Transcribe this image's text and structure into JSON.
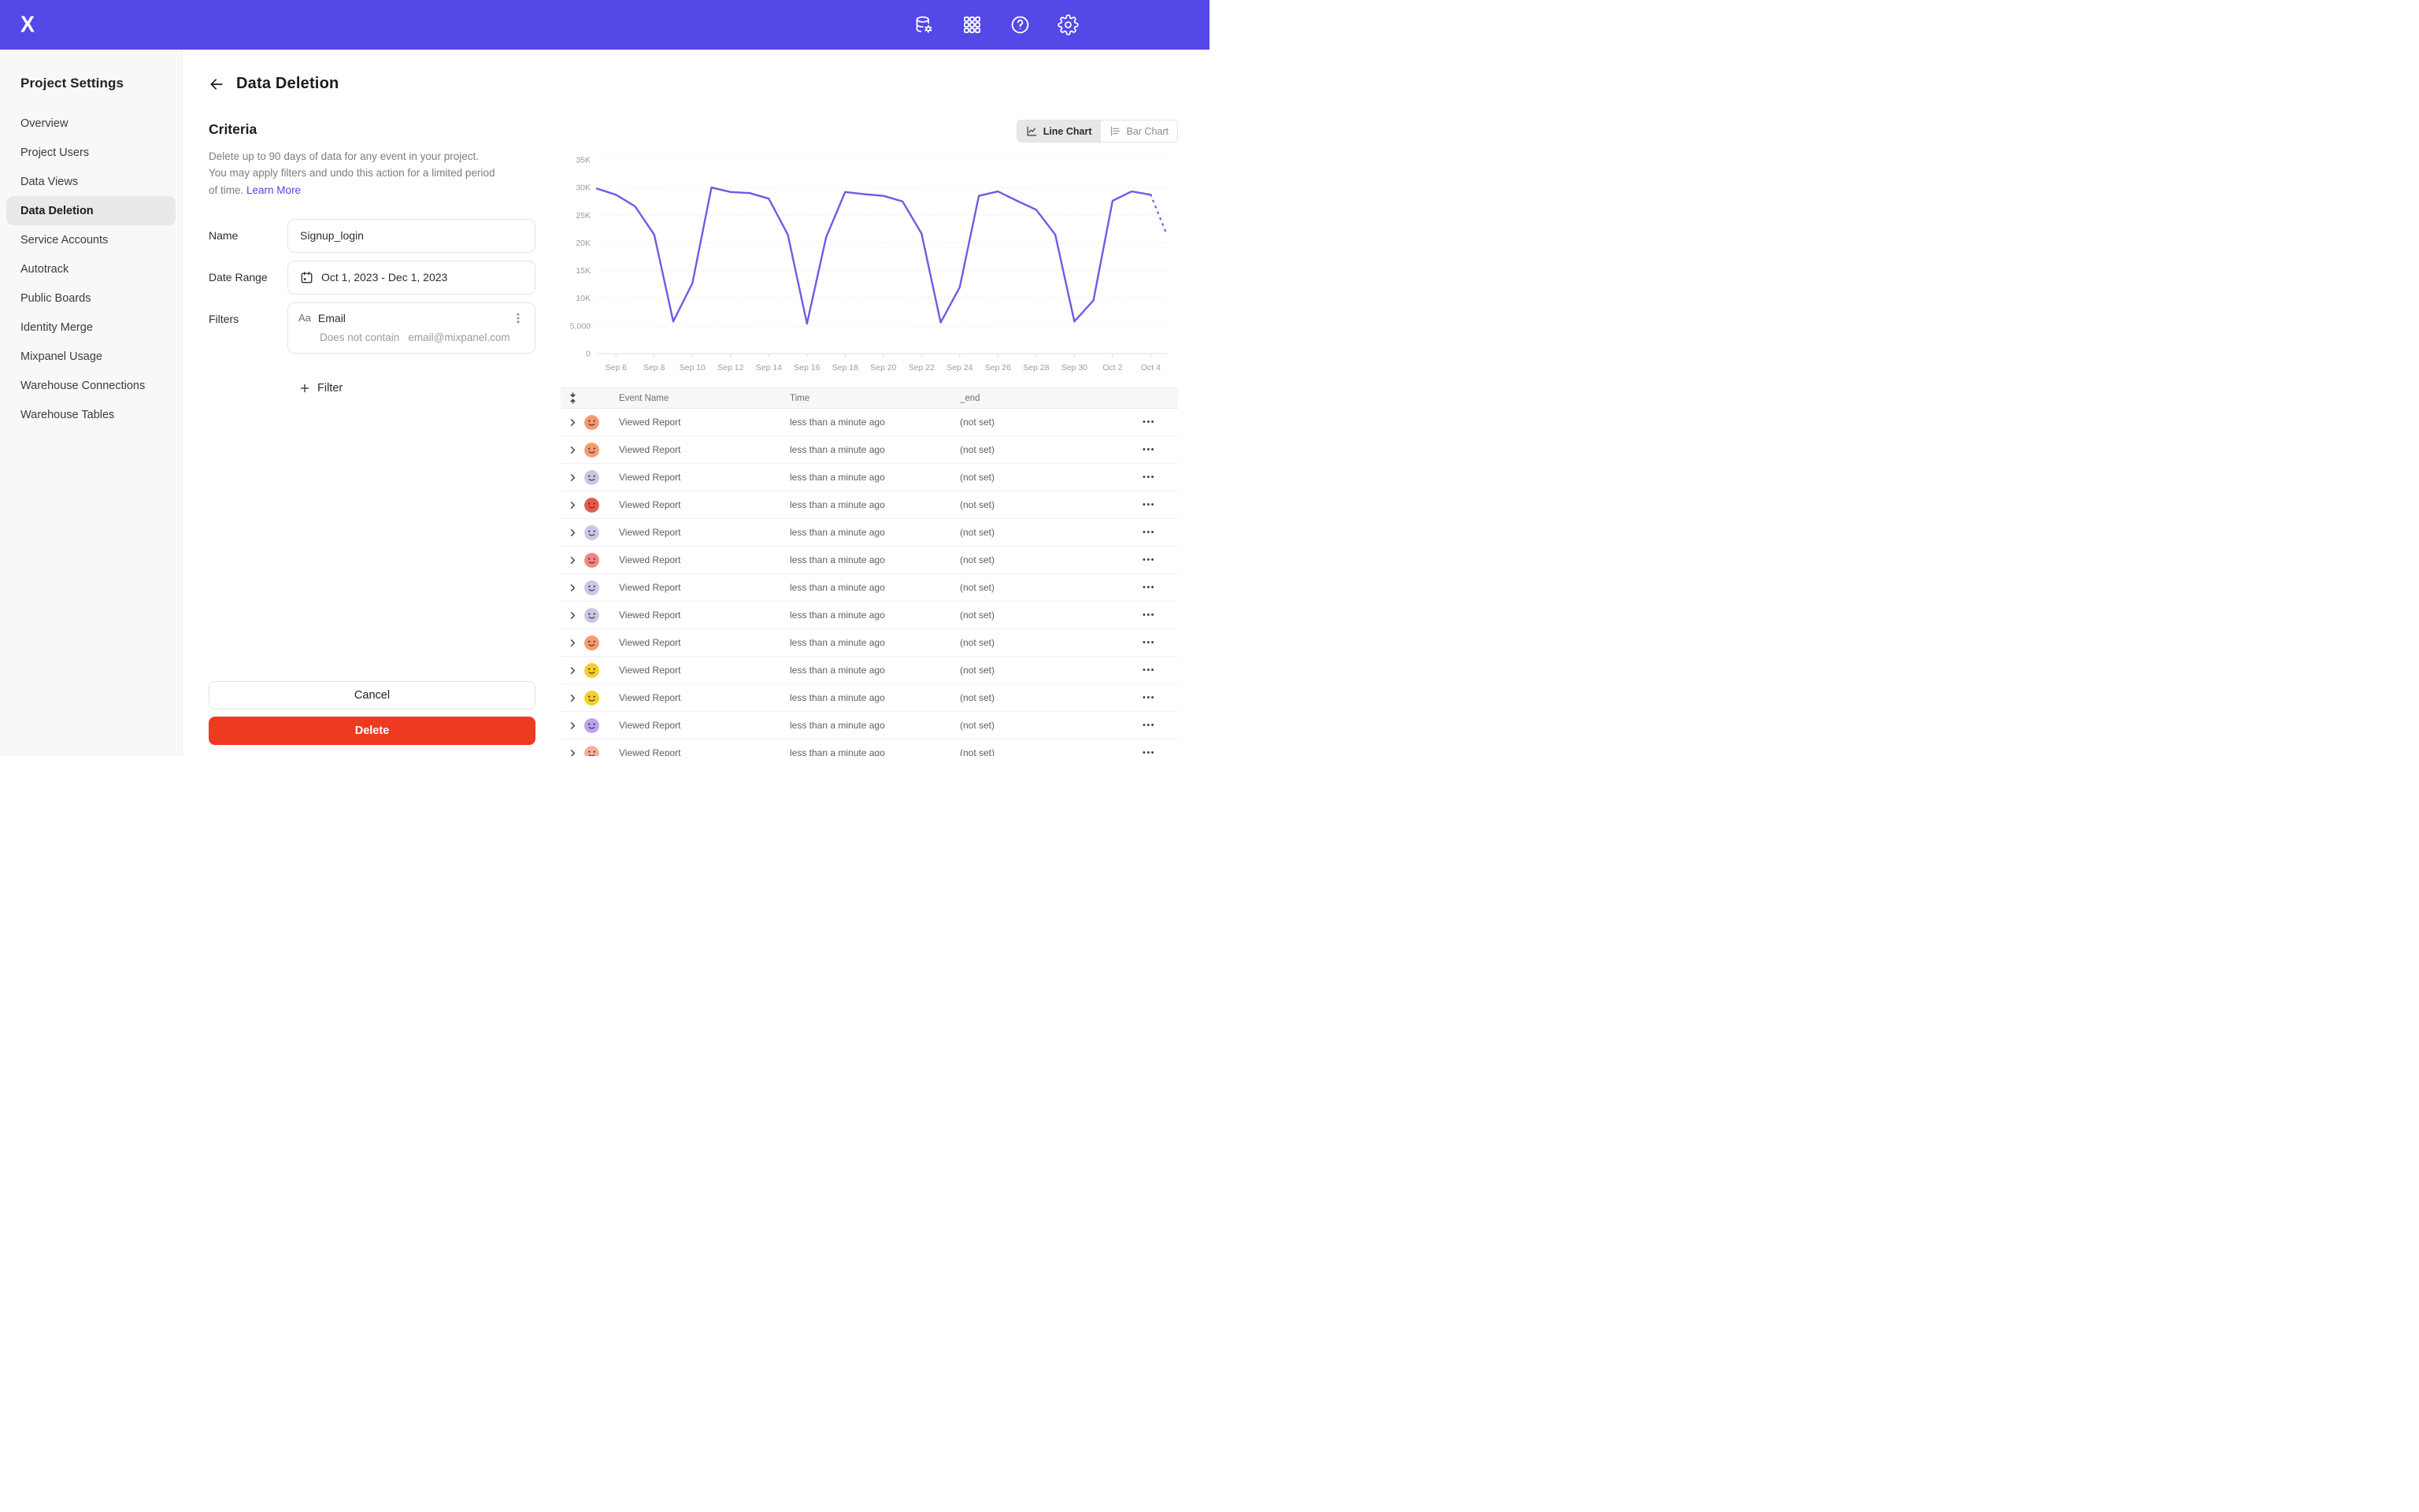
{
  "colors": {
    "topbar_purple": "#5448e6",
    "link_purple": "#5246e0",
    "delete_red": "#ee3a21",
    "chart_line": "#6e5be6",
    "selected_pill_gray": "#e9e9e9"
  },
  "topbar": {
    "icons": [
      "data-management",
      "apps-grid",
      "help",
      "settings"
    ]
  },
  "sidebar": {
    "title": "Project Settings",
    "selected_index": 3,
    "items": [
      {
        "label": "Overview"
      },
      {
        "label": "Project Users"
      },
      {
        "label": "Data Views"
      },
      {
        "label": "Data Deletion"
      },
      {
        "label": "Service Accounts"
      },
      {
        "label": "Autotrack"
      },
      {
        "label": "Public Boards"
      },
      {
        "label": "Identity Merge"
      },
      {
        "label": "Mixpanel Usage"
      },
      {
        "label": "Warehouse Connections"
      },
      {
        "label": "Warehouse Tables"
      }
    ]
  },
  "page": {
    "title": "Data Deletion"
  },
  "criteria": {
    "heading": "Criteria",
    "description": "Delete up to 90 days of data for any event in your project. You may apply filters and undo this action for a limited period of time.",
    "link_label": "Learn More"
  },
  "form": {
    "name_label": "Name",
    "name_value": "Signup_login",
    "date_label": "Date Range",
    "date_value": "Oct 1, 2023 - Dec 1, 2023",
    "filters_label": "Filters",
    "filter": {
      "type_badge": "Aa",
      "property": "Email",
      "operator": "Does not contain",
      "value": "email@mixpanel.com"
    },
    "add_filter_label": "Filter",
    "cancel_label": "Cancel",
    "delete_label": "Delete"
  },
  "chart_toggle": {
    "line_label": "Line Chart",
    "bar_label": "Bar Chart",
    "selected": "line"
  },
  "chart_data": {
    "type": "line",
    "title": "",
    "xlabel": "",
    "ylabel": "",
    "ylim": [
      0,
      35000
    ],
    "y_tick_step": 5000,
    "y_tick_labels": [
      "0",
      "5,000",
      "10K",
      "15K",
      "20K",
      "25K",
      "30K",
      "35K"
    ],
    "x": [
      "Sep 5",
      "Sep 6",
      "Sep 7",
      "Sep 8",
      "Sep 9",
      "Sep 10",
      "Sep 11",
      "Sep 12",
      "Sep 13",
      "Sep 14",
      "Sep 15",
      "Sep 16",
      "Sep 17",
      "Sep 18",
      "Sep 19",
      "Sep 20",
      "Sep 21",
      "Sep 22",
      "Sep 23",
      "Sep 24",
      "Sep 25",
      "Sep 26",
      "Sep 27",
      "Sep 28",
      "Sep 29",
      "Sep 30",
      "Oct 1",
      "Oct 2",
      "Oct 3",
      "Oct 4"
    ],
    "values": [
      29800,
      28700,
      26600,
      21500,
      5800,
      12700,
      30000,
      29200,
      29000,
      28000,
      21500,
      5400,
      21000,
      29200,
      28800,
      28500,
      27500,
      21700,
      5600,
      12000,
      28500,
      29300,
      27600,
      26000,
      21500,
      5800,
      9600,
      27600,
      29300,
      28700
    ],
    "x_tick_labels": [
      "Sep 6",
      "Sep 8",
      "Sep 10",
      "Sep 12",
      "Sep 14",
      "Sep 16",
      "Sep 18",
      "Sep 20",
      "Sep 22",
      "Sep 24",
      "Sep 26",
      "Sep 28",
      "Sep 30",
      "Oct 2",
      "Oct 4"
    ],
    "x_span_days": 29.85,
    "projection_tail": {
      "value": 21400,
      "style": "dotted"
    },
    "grid": true,
    "legend": false,
    "line_color": "#6e5be6"
  },
  "table": {
    "columns": [
      "Event Name",
      "Time",
      "_end"
    ],
    "rows": [
      {
        "event": "Viewed Report",
        "time": "less than a minute ago",
        "end": "(not set)",
        "avatar_color": "#f79a6e"
      },
      {
        "event": "Viewed Report",
        "time": "less than a minute ago",
        "end": "(not set)",
        "avatar_color": "#f79a6e"
      },
      {
        "event": "Viewed Report",
        "time": "less than a minute ago",
        "end": "(not set)",
        "avatar_color": "#c9c7e4"
      },
      {
        "event": "Viewed Report",
        "time": "less than a minute ago",
        "end": "(not set)",
        "avatar_color": "#e75a48"
      },
      {
        "event": "Viewed Report",
        "time": "less than a minute ago",
        "end": "(not set)",
        "avatar_color": "#c9c7e4"
      },
      {
        "event": "Viewed Report",
        "time": "less than a minute ago",
        "end": "(not set)",
        "avatar_color": "#f5867c"
      },
      {
        "event": "Viewed Report",
        "time": "less than a minute ago",
        "end": "(not set)",
        "avatar_color": "#c9c7e4"
      },
      {
        "event": "Viewed Report",
        "time": "less than a minute ago",
        "end": "(not set)",
        "avatar_color": "#c9c7e4"
      },
      {
        "event": "Viewed Report",
        "time": "less than a minute ago",
        "end": "(not set)",
        "avatar_color": "#f79a6e"
      },
      {
        "event": "Viewed Report",
        "time": "less than a minute ago",
        "end": "(not set)",
        "avatar_color": "#f6ce27"
      },
      {
        "event": "Viewed Report",
        "time": "less than a minute ago",
        "end": "(not set)",
        "avatar_color": "#f6ce27"
      },
      {
        "event": "Viewed Report",
        "time": "less than a minute ago",
        "end": "(not set)",
        "avatar_color": "#b9a4ec"
      },
      {
        "event": "Viewed Report",
        "time": "less than a minute ago",
        "end": "(not set)",
        "avatar_color": "#f7b094"
      }
    ]
  }
}
